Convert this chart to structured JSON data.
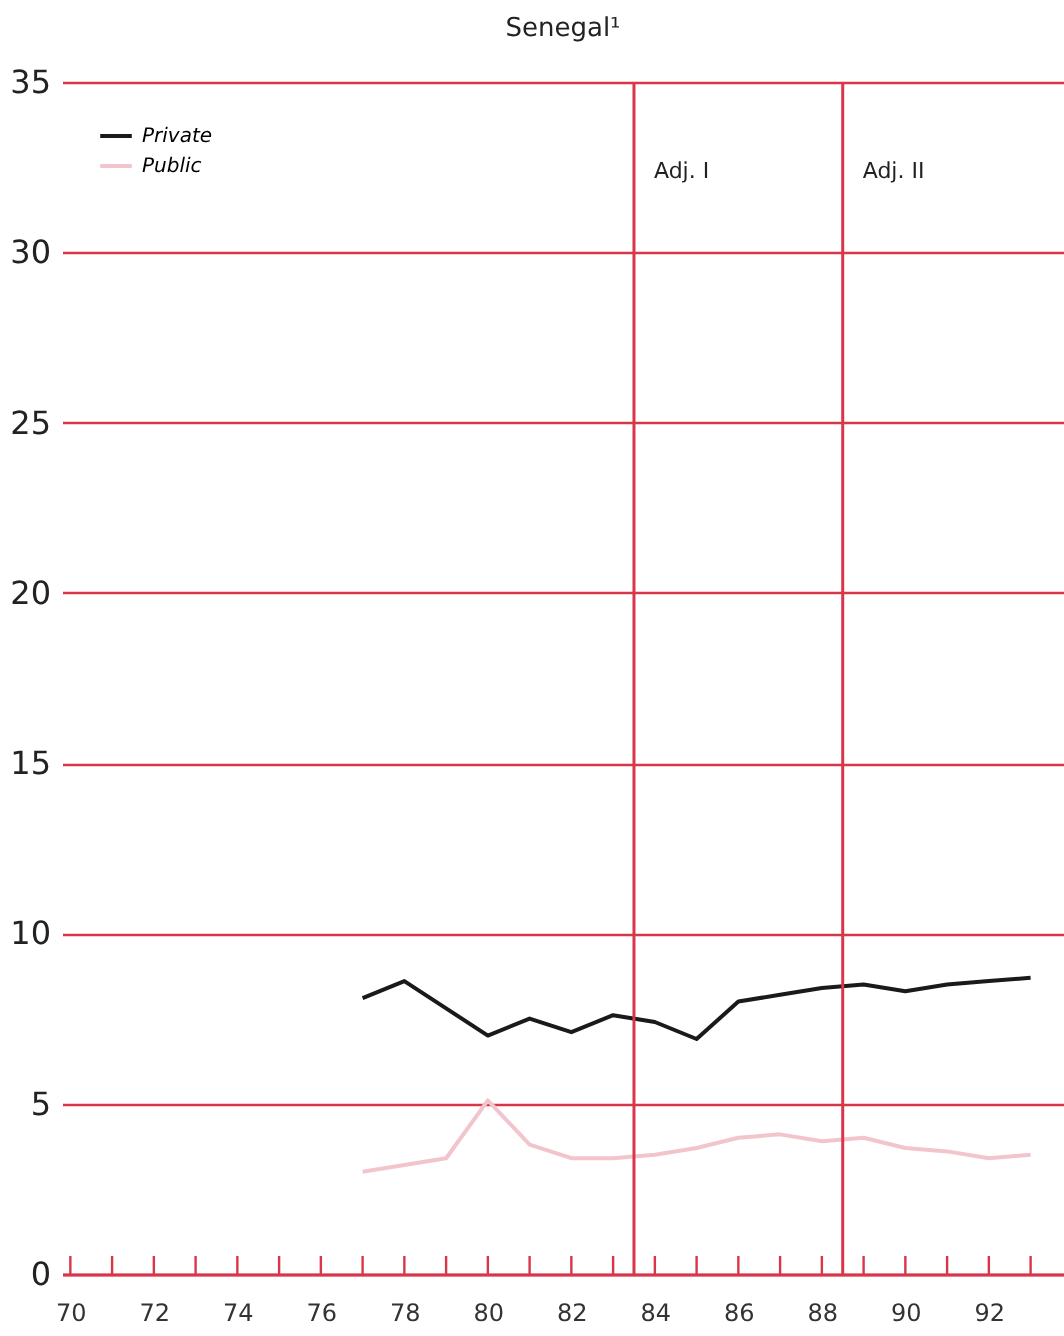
{
  "chart_data": {
    "type": "line",
    "title": "Senegal¹",
    "x": [
      77,
      78,
      79,
      80,
      81,
      82,
      83,
      84,
      85,
      86,
      87,
      88,
      89,
      90,
      91,
      92,
      93
    ],
    "series": [
      {
        "name": "Private",
        "color": "#1a1a1a",
        "values": [
          8.1,
          8.6,
          7.8,
          7.0,
          7.5,
          7.1,
          7.6,
          7.4,
          6.9,
          8.0,
          8.2,
          8.4,
          8.5,
          8.3,
          8.5,
          8.6,
          8.7
        ]
      },
      {
        "name": "Public",
        "color": "#f2c4cc",
        "values": [
          3.0,
          3.2,
          3.4,
          5.1,
          3.8,
          3.4,
          3.4,
          3.5,
          3.7,
          4.0,
          4.1,
          3.9,
          4.0,
          3.7,
          3.6,
          3.4,
          3.5
        ]
      }
    ],
    "xlim": [
      69.8,
      93.8
    ],
    "xticks": [
      70,
      {
        "value": 71,
        "label": null
      },
      72,
      {
        "value": 73,
        "label": null
      },
      74,
      {
        "value": 75,
        "label": null
      },
      76,
      {
        "value": 77,
        "label": null
      },
      78,
      {
        "value": 79,
        "label": null
      },
      80,
      {
        "value": 81,
        "label": null
      },
      82,
      {
        "value": 83,
        "label": null
      },
      84,
      {
        "value": 85,
        "label": null
      },
      86,
      {
        "value": 87,
        "label": null
      },
      88,
      {
        "value": 89,
        "label": null
      },
      90,
      {
        "value": 91,
        "label": null
      },
      92,
      {
        "value": 93,
        "label": null
      }
    ],
    "ylim": [
      0,
      35
    ],
    "yticks": [
      0,
      5,
      10,
      15,
      20,
      25,
      30,
      35
    ],
    "ref_lines": [
      {
        "axis": "x",
        "value": 83.5,
        "label": "Adj. I",
        "color": "#d9364a"
      },
      {
        "axis": "x",
        "value": 88.5,
        "label": "Adj. II",
        "color": "#d9364a"
      }
    ],
    "grid": "y",
    "legend": "top left",
    "line_style": "solid",
    "marker": "none"
  }
}
